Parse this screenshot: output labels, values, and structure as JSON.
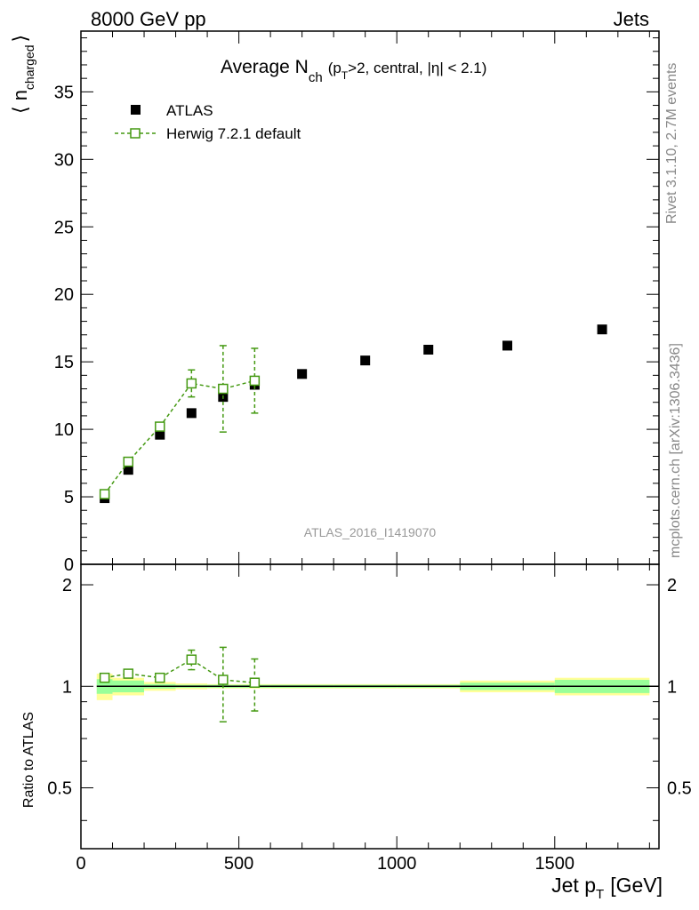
{
  "header": {
    "left": "8000 GeV pp",
    "right": "Jets"
  },
  "side_labels": {
    "rivet": "Rivet 3.1.10,  2.7M events",
    "mcplots": "mcplots.cern.ch [arXiv:1306.3436]"
  },
  "analysis_id": "ATLAS_2016_I1419070",
  "colors": {
    "data": "#000000",
    "mc": "#449911",
    "band_inner": "#99ff99",
    "band_outer": "#ffff99"
  },
  "chart_data": [
    {
      "type": "scatter",
      "panel": "main",
      "title": "Average N_ch (p_T>2, central, |η| < 2.1)",
      "title_parts": {
        "main": "Average N",
        "sub": "ch",
        "rest_a": "(p",
        "rest_sub": "T",
        "rest_b": ">2, central, |η| < 2.1)"
      },
      "ylabel": "⟨ n_charged ⟩",
      "ylabel_parts": {
        "left": "⟨ n",
        "sub": "charged",
        "right": "⟩"
      },
      "xlim": [
        0,
        1830
      ],
      "ylim": [
        0,
        39.5
      ],
      "yticks": [
        0,
        5,
        10,
        15,
        20,
        25,
        30,
        35
      ],
      "legend_position": "top-left",
      "series": [
        {
          "name": "ATLAS",
          "marker": "filled-square",
          "x": [
            75,
            150,
            250,
            350,
            450,
            550,
            700,
            900,
            1100,
            1350,
            1650
          ],
          "y": [
            4.9,
            7.0,
            9.6,
            11.2,
            12.4,
            13.3,
            14.1,
            15.1,
            15.9,
            16.2,
            17.4
          ],
          "xerr": [
            25,
            50,
            50,
            50,
            50,
            50,
            100,
            100,
            100,
            150,
            150
          ]
        },
        {
          "name": "Herwig 7.2.1 default",
          "marker": "open-square",
          "line": "dashed",
          "x": [
            75,
            150,
            250,
            350,
            450,
            550
          ],
          "y": [
            5.2,
            7.6,
            10.2,
            13.4,
            13.0,
            13.6
          ],
          "yerr": [
            0.1,
            0.15,
            0.2,
            1.0,
            3.2,
            2.4
          ]
        }
      ]
    },
    {
      "type": "scatter",
      "panel": "ratio",
      "ylabel": "Ratio to ATLAS",
      "xlabel": "Jet p_T [GeV]",
      "xlabel_parts": {
        "main": "Jet p",
        "sub": "T",
        "rest": "[GeV]"
      },
      "xlim": [
        0,
        1830
      ],
      "ylim": [
        0.33,
        2.3
      ],
      "log_y": true,
      "yticks": [
        0.5,
        1,
        2
      ],
      "ytick_labels": [
        "0.5",
        "1",
        "2"
      ],
      "xticks": [
        0,
        500,
        1000,
        1500
      ],
      "xtick_labels": [
        "0",
        "500",
        "1000",
        "1500"
      ],
      "bands": {
        "edges": [
          50,
          100,
          200,
          300,
          400,
          500,
          600,
          800,
          1000,
          1200,
          1500,
          1800
        ],
        "inner": [
          [
            0.95,
            1.05
          ],
          [
            0.96,
            1.04
          ],
          [
            0.985,
            1.015
          ],
          [
            0.99,
            1.01
          ],
          [
            0.99,
            1.01
          ],
          [
            0.99,
            1.01
          ],
          [
            0.99,
            1.01
          ],
          [
            0.99,
            1.01
          ],
          [
            0.99,
            1.01
          ],
          [
            0.975,
            1.025
          ],
          [
            0.955,
            1.045
          ]
        ],
        "outer": [
          [
            0.91,
            1.09
          ],
          [
            0.94,
            1.06
          ],
          [
            0.97,
            1.03
          ],
          [
            0.98,
            1.02
          ],
          [
            0.985,
            1.015
          ],
          [
            0.985,
            1.015
          ],
          [
            0.985,
            1.015
          ],
          [
            0.985,
            1.015
          ],
          [
            0.985,
            1.015
          ],
          [
            0.96,
            1.04
          ],
          [
            0.94,
            1.06
          ]
        ]
      },
      "series": [
        {
          "name": "Herwig 7.2.1 default",
          "x": [
            75,
            150,
            250,
            350,
            450,
            550
          ],
          "y": [
            1.06,
            1.09,
            1.06,
            1.2,
            1.045,
            1.025
          ],
          "yerr": [
            0.02,
            0.02,
            0.02,
            0.08,
            0.26,
            0.18
          ]
        }
      ]
    }
  ]
}
